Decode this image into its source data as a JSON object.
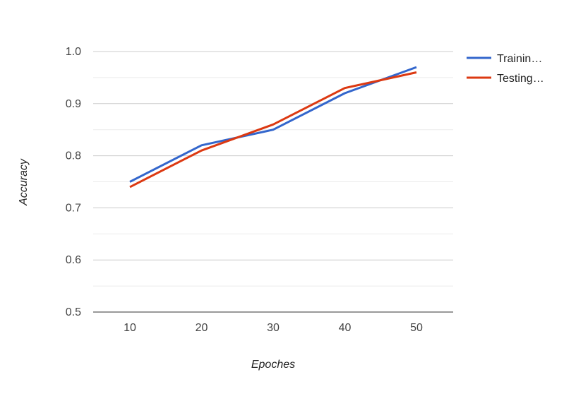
{
  "chart_data": {
    "type": "line",
    "title": "",
    "xlabel": "Epoches",
    "ylabel": "Accuracy",
    "x": [
      10,
      20,
      30,
      40,
      50
    ],
    "x_ticks": [
      "10",
      "20",
      "30",
      "40",
      "50"
    ],
    "y_ticks": [
      "1.0",
      "0.9",
      "0.8",
      "0.7",
      "0.6",
      "0.5"
    ],
    "ylim": [
      0.5,
      1.0
    ],
    "grid": true,
    "legend_position": "right",
    "series": [
      {
        "name": "Trainin…",
        "color": "#3366cc",
        "values": [
          0.75,
          0.82,
          0.85,
          0.92,
          0.97
        ]
      },
      {
        "name": "Testing…",
        "color": "#dc3912",
        "values": [
          0.74,
          0.81,
          0.86,
          0.93,
          0.96
        ]
      }
    ]
  }
}
